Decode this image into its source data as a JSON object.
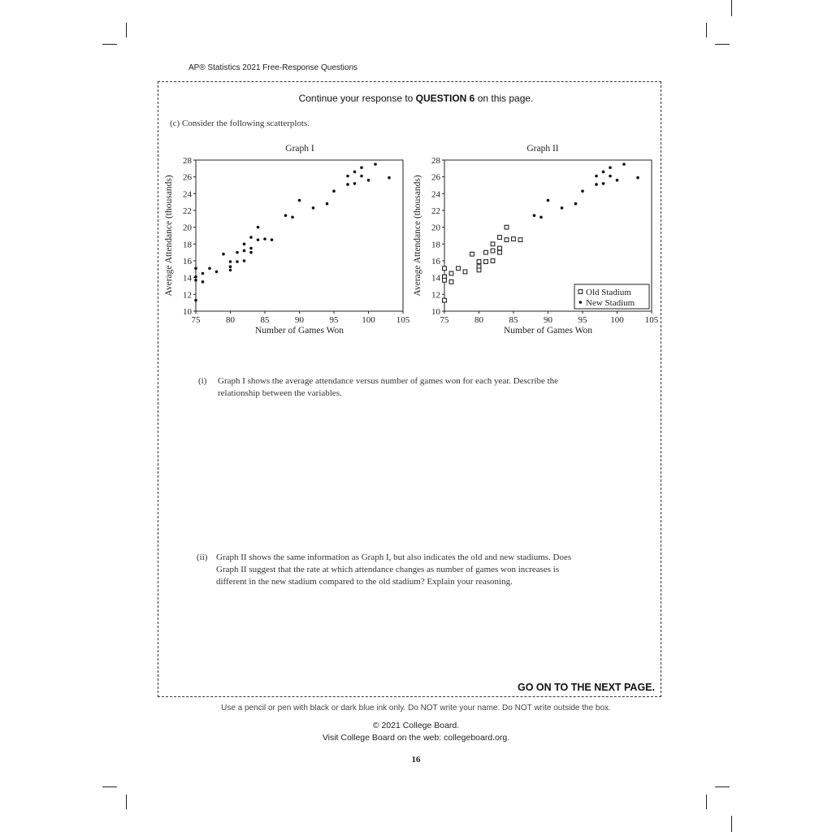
{
  "header": "AP® Statistics 2021 Free-Response Questions",
  "box": {
    "continue_prefix": "Continue your response to ",
    "continue_bold": "QUESTION 6",
    "continue_suffix": " on this page.",
    "part_c": "(c) Consider the following scatterplots.",
    "go_next": "GO ON TO THE NEXT PAGE."
  },
  "questions": [
    {
      "num": "(i)",
      "lines": [
        "Graph I shows the average attendance versus number of games won for each year. Describe the",
        "relationship between the variables."
      ]
    },
    {
      "num": "(ii)",
      "lines": [
        "Graph II shows the same information as Graph I, but also indicates the old and new stadiums. Does",
        "Graph II suggest that the rate at which attendance changes as number of games won increases is",
        "different in the new stadium compared to the old stadium? Explain your reasoning."
      ]
    }
  ],
  "footer": {
    "note": "Use a pencil or pen with black or dark blue ink only. Do NOT write your name. Do NOT write outside the box.",
    "copyright": "© 2021 College Board.",
    "visit": "Visit College Board on the web: collegeboard.org.",
    "page": "16"
  },
  "chart_data": [
    {
      "type": "scatter",
      "title": "Graph I",
      "xlabel": "Number of Games Won",
      "ylabel": "Average Attendance (thousands)",
      "xlim": [
        75,
        105
      ],
      "ylim": [
        10,
        28
      ],
      "xticks": [
        75,
        80,
        85,
        90,
        95,
        100,
        105
      ],
      "yticks": [
        10,
        12,
        14,
        16,
        18,
        20,
        22,
        24,
        26,
        28
      ],
      "grid": false,
      "series": [
        {
          "marker": "dot",
          "x": [
            75,
            75,
            75,
            75,
            76,
            76,
            77,
            78,
            79,
            80,
            80,
            80,
            81,
            81,
            82,
            82,
            82,
            83,
            83,
            83,
            84,
            84,
            85,
            86,
            88,
            89,
            90,
            92,
            94,
            95,
            97,
            97,
            98,
            98,
            99,
            99,
            100,
            101,
            103
          ],
          "y": [
            15.1,
            14.1,
            13.7,
            11.3,
            14.5,
            13.5,
            15.1,
            14.7,
            16.8,
            15.9,
            15.3,
            14.9,
            17.0,
            15.9,
            18.0,
            17.2,
            16.0,
            18.8,
            17.5,
            17.0,
            20.0,
            18.5,
            18.6,
            18.5,
            21.4,
            21.2,
            23.2,
            22.3,
            22.8,
            24.3,
            26.1,
            25.1,
            26.6,
            25.2,
            27.1,
            26.1,
            25.6,
            27.5,
            25.9
          ]
        }
      ]
    },
    {
      "type": "scatter",
      "title": "Graph II",
      "xlabel": "Number of Games Won",
      "ylabel": "Average Attendance (thousands)",
      "xlim": [
        75,
        105
      ],
      "ylim": [
        10,
        28
      ],
      "xticks": [
        75,
        80,
        85,
        90,
        95,
        100,
        105
      ],
      "yticks": [
        10,
        12,
        14,
        16,
        18,
        20,
        22,
        24,
        26,
        28
      ],
      "grid": false,
      "legend_position": "bottom-right",
      "series": [
        {
          "name": "Old Stadium",
          "marker": "square",
          "x": [
            75,
            75,
            75,
            75,
            76,
            76,
            77,
            78,
            79,
            80,
            80,
            80,
            81,
            81,
            82,
            82,
            82,
            83,
            83,
            83,
            84,
            84,
            85,
            86
          ],
          "y": [
            15.1,
            14.1,
            13.7,
            11.3,
            14.5,
            13.5,
            15.1,
            14.7,
            16.8,
            15.9,
            15.3,
            14.9,
            17.0,
            15.9,
            18.0,
            17.2,
            16.0,
            18.8,
            17.5,
            17.0,
            20.0,
            18.5,
            18.6,
            18.5
          ]
        },
        {
          "name": "New Stadium",
          "marker": "dot",
          "x": [
            88,
            89,
            90,
            92,
            94,
            95,
            97,
            97,
            98,
            98,
            99,
            99,
            100,
            101,
            103
          ],
          "y": [
            21.4,
            21.2,
            23.2,
            22.3,
            22.8,
            24.3,
            26.1,
            25.1,
            26.6,
            25.2,
            27.1,
            26.1,
            25.6,
            27.5,
            25.9
          ]
        }
      ]
    }
  ]
}
